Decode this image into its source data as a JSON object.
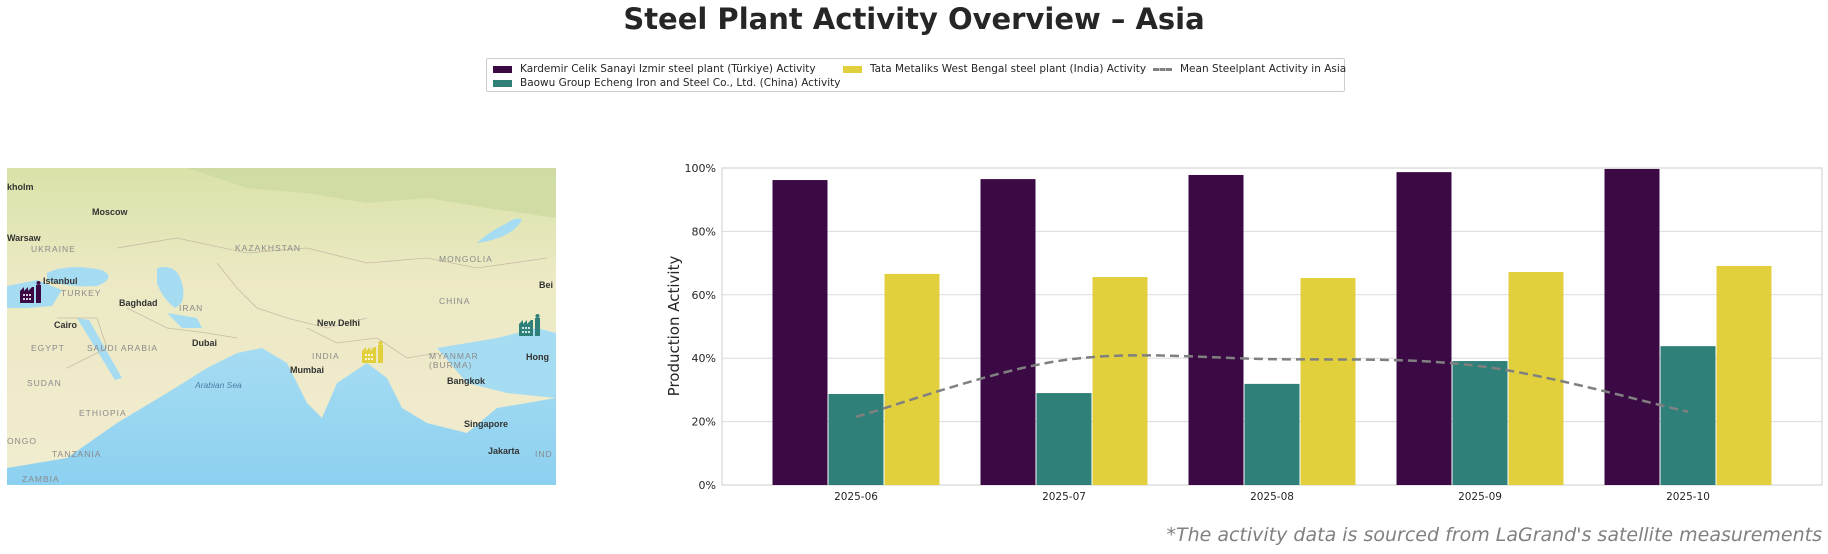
{
  "title": "Steel Plant Activity Overview – Asia",
  "footnote": "*The activity data is sourced from LaGrand's satellite measurements",
  "legend": [
    {
      "label": "Kardemir Celik Sanayi Izmir steel plant (Türkiye) Activity",
      "color": "#3b0a45",
      "kind": "bar"
    },
    {
      "label": "Baowu Group Echeng Iron and Steel Co., Ltd. (China) Activity",
      "color": "#2e8079",
      "kind": "bar"
    },
    {
      "label": "Tata Metaliks West Bengal steel plant (India) Activity",
      "color": "#e1d03c",
      "kind": "bar"
    },
    {
      "label": "Mean Steelplant Activity in Asia",
      "color": "#808080",
      "kind": "dashed-line"
    }
  ],
  "map": {
    "labels": [
      {
        "text": "kholm",
        "kind": "city"
      },
      {
        "text": "Moscow",
        "kind": "city"
      },
      {
        "text": "Warsaw",
        "kind": "city"
      },
      {
        "text": "UKRAINE",
        "kind": "country"
      },
      {
        "text": "KAZAKHSTAN",
        "kind": "country"
      },
      {
        "text": "MONGOLIA",
        "kind": "country"
      },
      {
        "text": "Istanbul",
        "kind": "city"
      },
      {
        "text": "TURKEY",
        "kind": "country"
      },
      {
        "text": "Bei",
        "kind": "city"
      },
      {
        "text": "Baghdad",
        "kind": "city"
      },
      {
        "text": "IRAN",
        "kind": "country"
      },
      {
        "text": "CHINA",
        "kind": "country"
      },
      {
        "text": "Cairo",
        "kind": "city"
      },
      {
        "text": "New Delhi",
        "kind": "city"
      },
      {
        "text": "EGYPT",
        "kind": "country"
      },
      {
        "text": "SAUDI ARABIA",
        "kind": "country"
      },
      {
        "text": "Dubai",
        "kind": "city"
      },
      {
        "text": "INDIA",
        "kind": "country"
      },
      {
        "text": "MYANMAR",
        "kind": "country"
      },
      {
        "text": "(BURMA)",
        "kind": "country"
      },
      {
        "text": "Hong",
        "kind": "city"
      },
      {
        "text": "Mumbai",
        "kind": "city"
      },
      {
        "text": "SUDAN",
        "kind": "country"
      },
      {
        "text": "Arabian Sea",
        "kind": "water"
      },
      {
        "text": "Bangkok",
        "kind": "city"
      },
      {
        "text": "ETHIOPIA",
        "kind": "country"
      },
      {
        "text": "Singapore",
        "kind": "city"
      },
      {
        "text": "ONGO",
        "kind": "country"
      },
      {
        "text": "TANZANIA",
        "kind": "country"
      },
      {
        "text": "Jakarta",
        "kind": "city"
      },
      {
        "text": "IND",
        "kind": "country"
      },
      {
        "text": "ZAMBIA",
        "kind": "country"
      }
    ],
    "markers": [
      {
        "name": "Kardemir Izmir",
        "color": "#3b0a45"
      },
      {
        "name": "Tata Metaliks West Bengal",
        "color": "#e1d03c"
      },
      {
        "name": "Baowu Echeng",
        "color": "#2e8079"
      }
    ]
  },
  "chart_data": {
    "type": "bar",
    "title": "Steel Plant Activity Overview – Asia",
    "xlabel": "",
    "ylabel": "Production Activity",
    "ylim": [
      0,
      100
    ],
    "yticks": [
      "0%",
      "20%",
      "40%",
      "60%",
      "80%",
      "100%"
    ],
    "ytick_values": [
      0,
      20,
      40,
      60,
      80,
      100
    ],
    "grid": true,
    "legend_position": "top-center",
    "categories": [
      "2025-06",
      "2025-07",
      "2025-08",
      "2025-09",
      "2025-10"
    ],
    "series": [
      {
        "name": "Kardemir Celik Sanayi Izmir steel plant (Türkiye) Activity",
        "type": "bar",
        "color": "#3b0a45",
        "values": [
          96.2,
          96.5,
          97.8,
          98.7,
          99.7
        ]
      },
      {
        "name": "Baowu Group Echeng Iron and Steel Co., Ltd. (China) Activity",
        "type": "bar",
        "color": "#2e8079",
        "values": [
          28.7,
          29.0,
          31.9,
          39.1,
          43.8
        ]
      },
      {
        "name": "Tata Metaliks West Bengal steel plant (India) Activity",
        "type": "bar",
        "color": "#e1d03c",
        "values": [
          66.6,
          65.6,
          65.3,
          67.2,
          69.1
        ]
      },
      {
        "name": "Mean Steelplant Activity in Asia",
        "type": "line",
        "style": "dashed",
        "color": "#808080",
        "values": [
          21.5,
          39.4,
          39.7,
          37.5,
          23.1
        ]
      }
    ]
  }
}
